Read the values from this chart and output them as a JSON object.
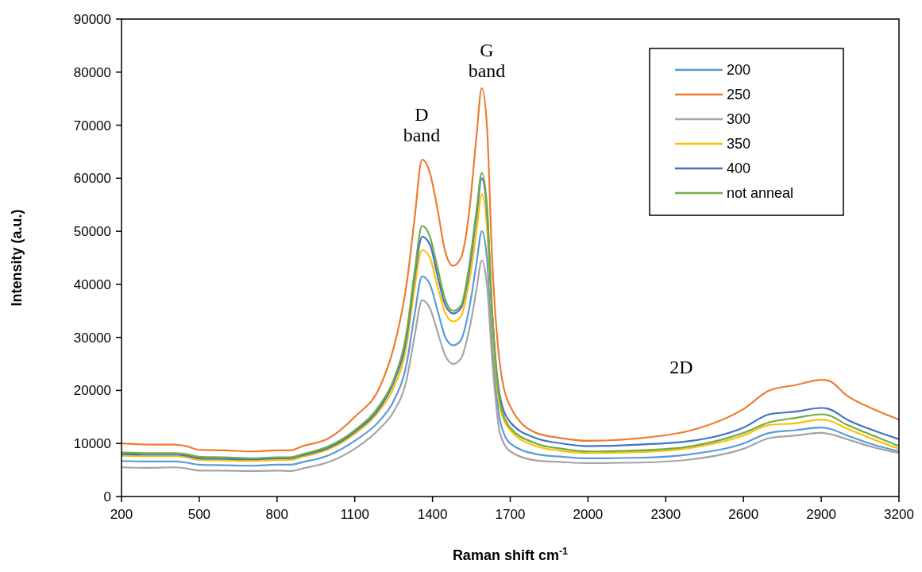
{
  "chart_data": {
    "type": "line",
    "xlabel": "Raman shift cm$^{-1}$",
    "ylabel": "Intensity (a.u.)",
    "x": [
      200,
      300,
      400,
      450,
      500,
      600,
      700,
      800,
      850,
      900,
      1000,
      1100,
      1200,
      1250,
      1300,
      1330,
      1360,
      1390,
      1420,
      1450,
      1480,
      1510,
      1540,
      1570,
      1590,
      1610,
      1630,
      1660,
      1700,
      1800,
      1900,
      2000,
      2200,
      2400,
      2600,
      2700,
      2800,
      2900,
      2930,
      3000,
      3100,
      3200
    ],
    "series": [
      {
        "name": "200",
        "color": "#5b9bd5",
        "values": [
          6700,
          6600,
          6600,
          6400,
          6000,
          5900,
          5800,
          6000,
          6000,
          6500,
          7800,
          10500,
          14500,
          18000,
          25000,
          34000,
          41500,
          40000,
          35000,
          30000,
          28500,
          29500,
          35000,
          44000,
          50000,
          45000,
          29000,
          14500,
          10000,
          8000,
          7500,
          7200,
          7300,
          8000,
          10000,
          12000,
          12500,
          13000,
          12800,
          11500,
          9800,
          8500
        ]
      },
      {
        "name": "250",
        "color": "#ed7d31",
        "values": [
          10000,
          9800,
          9800,
          9500,
          8800,
          8700,
          8500,
          8700,
          8700,
          9500,
          11000,
          15000,
          21000,
          28000,
          40000,
          52000,
          63500,
          61000,
          54000,
          46000,
          43500,
          45000,
          53000,
          68000,
          77000,
          70000,
          45000,
          25000,
          17000,
          12000,
          11000,
          10500,
          11000,
          12500,
          16500,
          20000,
          21000,
          22000,
          21800,
          19000,
          16500,
          14500
        ]
      },
      {
        "name": "300",
        "color": "#a5a5a5",
        "values": [
          5500,
          5400,
          5500,
          5300,
          4900,
          4900,
          4800,
          4900,
          4800,
          5300,
          6500,
          9000,
          13000,
          16000,
          22000,
          30000,
          37000,
          35500,
          31000,
          26500,
          25000,
          26000,
          31000,
          39000,
          44500,
          40000,
          26000,
          12000,
          8500,
          6800,
          6500,
          6300,
          6400,
          7000,
          9000,
          11000,
          11500,
          12000,
          11800,
          10800,
          9300,
          8200
        ]
      },
      {
        "name": "350",
        "color": "#ffc000",
        "values": [
          7700,
          7600,
          7600,
          7400,
          6900,
          6800,
          6700,
          6900,
          6900,
          7500,
          8900,
          11800,
          16500,
          20500,
          28500,
          39000,
          46500,
          45000,
          39500,
          34500,
          33000,
          34000,
          40000,
          50000,
          57000,
          51000,
          33000,
          17000,
          12500,
          9500,
          8600,
          8200,
          8400,
          9200,
          11500,
          13500,
          13800,
          14500,
          14300,
          12800,
          10800,
          9000
        ]
      },
      {
        "name": "400",
        "color": "#4472c4",
        "values": [
          8000,
          7900,
          7900,
          7700,
          7200,
          7100,
          7000,
          7200,
          7200,
          7800,
          9200,
          12200,
          17000,
          21500,
          30000,
          41000,
          49000,
          47500,
          41500,
          36000,
          34500,
          35500,
          42000,
          53000,
          60000,
          54000,
          35000,
          19000,
          14000,
          11000,
          10000,
          9500,
          9800,
          10500,
          13000,
          15500,
          16000,
          16700,
          16500,
          14500,
          12500,
          10800
        ]
      },
      {
        "name": "not anneal",
        "color": "#70ad47",
        "values": [
          8300,
          8200,
          8200,
          8000,
          7500,
          7400,
          7200,
          7400,
          7400,
          8000,
          9500,
          12500,
          17500,
          22000,
          31000,
          42000,
          51000,
          49000,
          43000,
          37000,
          35000,
          36000,
          43000,
          54000,
          61000,
          55000,
          35000,
          18000,
          13000,
          10000,
          9000,
          8500,
          8700,
          9500,
          12000,
          14000,
          14800,
          15500,
          15300,
          13500,
          11500,
          9500
        ]
      }
    ],
    "xlim": [
      200,
      3200
    ],
    "xticks": [
      200,
      500,
      800,
      1100,
      1400,
      1700,
      2000,
      2300,
      2600,
      2900,
      3200
    ],
    "ylim": [
      0,
      90000
    ],
    "yticks": [
      0,
      10000,
      20000,
      30000,
      40000,
      50000,
      60000,
      70000,
      80000,
      90000
    ],
    "grid": false,
    "legend": "top right",
    "marker": "none",
    "line_style": "solid",
    "annotations": [
      "D band",
      "G band",
      "2D"
    ]
  }
}
